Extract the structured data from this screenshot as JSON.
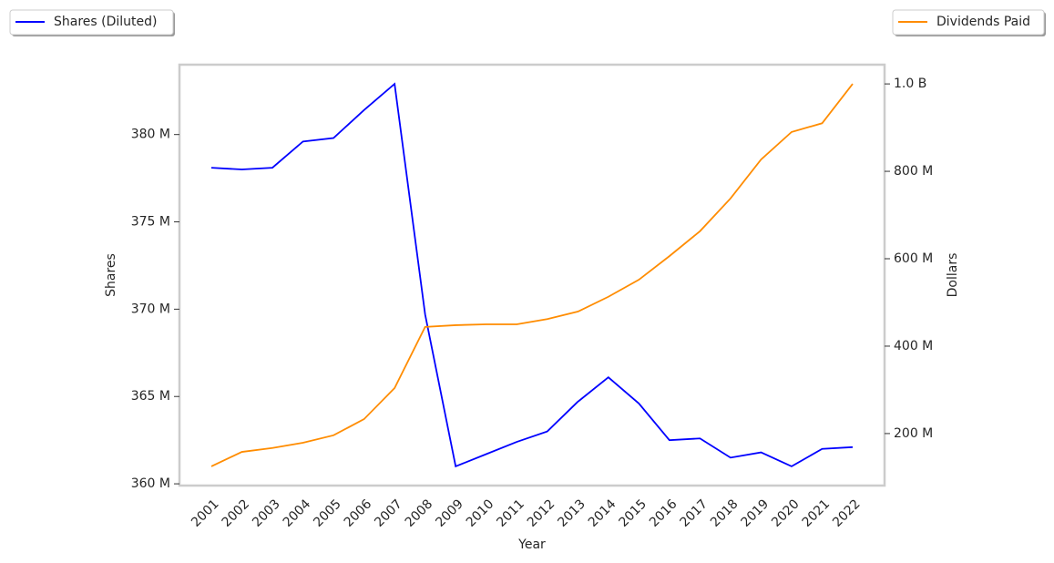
{
  "chart_data": {
    "type": "line",
    "x_label": "Year",
    "y_label": "Shares",
    "y2_label": "Dollars",
    "categories": [
      "2001",
      "2002",
      "2003",
      "2004",
      "2005",
      "2006",
      "2007",
      "2008",
      "2009",
      "2010",
      "2011",
      "2012",
      "2013",
      "2014",
      "2015",
      "2016",
      "2017",
      "2018",
      "2019",
      "2020",
      "2021",
      "2022"
    ],
    "series": [
      {
        "name": "Shares (Diluted)",
        "color": "#0000ff",
        "axis": "y",
        "values": [
          378100000,
          378000000,
          378100000,
          379600000,
          379800000,
          381400000,
          382900000,
          369700000,
          361000000,
          361700000,
          362400000,
          363000000,
          364700000,
          366100000,
          364600000,
          362500000,
          362600000,
          361500000,
          361800000,
          361000000,
          362000000,
          362100000
        ]
      },
      {
        "name": "Dividends Paid",
        "color": "#ff8c00",
        "axis": "y2",
        "values": [
          125000000,
          158000000,
          167000000,
          179000000,
          196000000,
          233000000,
          304000000,
          444000000,
          448000000,
          450000000,
          450000000,
          462000000,
          479000000,
          513000000,
          552000000,
          606000000,
          663000000,
          738000000,
          827000000,
          890000000,
          910000000,
          1000000000
        ]
      }
    ],
    "ylim": [
      359900000,
      384000000
    ],
    "yticks": [
      {
        "value": 360000000,
        "label": "360 M"
      },
      {
        "value": 365000000,
        "label": "365 M"
      },
      {
        "value": 370000000,
        "label": "370 M"
      },
      {
        "value": 375000000,
        "label": "375 M"
      },
      {
        "value": 380000000,
        "label": "380 M"
      }
    ],
    "y2lim": [
      81000000,
      1044000000
    ],
    "y2ticks": [
      {
        "value": 200000000,
        "label": "200 M"
      },
      {
        "value": 400000000,
        "label": "400 M"
      },
      {
        "value": 600000000,
        "label": "600 M"
      },
      {
        "value": 800000000,
        "label": "800 M"
      },
      {
        "value": 1000000000,
        "label": "1.0 B"
      }
    ],
    "grid": false
  }
}
